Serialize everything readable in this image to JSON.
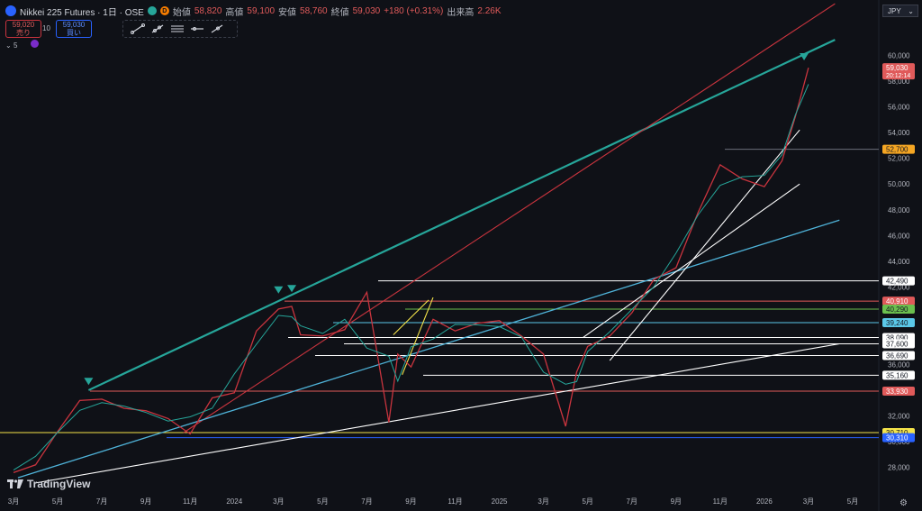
{
  "header": {
    "symbol_badge": "225",
    "title": "Nikkei 225 Futures · 1日 · OSE",
    "ohlc": [
      {
        "key": "始値",
        "value": "58,820"
      },
      {
        "key": "高値",
        "value": "59,100"
      },
      {
        "key": "安値",
        "value": "58,760"
      },
      {
        "key": "終値",
        "value": "59,030"
      }
    ],
    "change": "+180 (+0.31%)",
    "volume_label": "出来高",
    "volume_value": "2.26K",
    "colors": {
      "down": "#e05a5a",
      "up": "#26a69a",
      "bg": "#0f1117"
    }
  },
  "trade": {
    "sell_price": "59,020",
    "sell_label": "売り",
    "qty": "10",
    "buy_price": "59,030",
    "buy_label": "買い"
  },
  "indicators": {
    "count": "5"
  },
  "currency": "JPY",
  "brand": "TradingView",
  "chart_data": {
    "type": "line",
    "title": "Nikkei 225 Futures",
    "y_axis": {
      "ticks": [
        28000,
        30000,
        32000,
        34000,
        36000,
        38000,
        42000,
        44000,
        46000,
        48000,
        50000,
        52000,
        54000,
        56000,
        58000,
        60000
      ],
      "min": 27000,
      "max": 61000
    },
    "x_axis": {
      "ticks": [
        {
          "label": "3月",
          "i": 0
        },
        {
          "label": "5月",
          "i": 2
        },
        {
          "label": "7月",
          "i": 4
        },
        {
          "label": "9月",
          "i": 6
        },
        {
          "label": "11月",
          "i": 8
        },
        {
          "label": "2024",
          "i": 10
        },
        {
          "label": "3月",
          "i": 12
        },
        {
          "label": "5月",
          "i": 14
        },
        {
          "label": "7月",
          "i": 16
        },
        {
          "label": "9月",
          "i": 18
        },
        {
          "label": "11月",
          "i": 20
        },
        {
          "label": "2025",
          "i": 22
        },
        {
          "label": "3月",
          "i": 24
        },
        {
          "label": "5月",
          "i": 26
        },
        {
          "label": "7月",
          "i": 28
        },
        {
          "label": "9月",
          "i": 30
        },
        {
          "label": "11月",
          "i": 32
        },
        {
          "label": "2026",
          "i": 34
        },
        {
          "label": "3月",
          "i": 36
        },
        {
          "label": "5月",
          "i": 38
        }
      ]
    },
    "series": [
      {
        "values": [
          [
            0,
            27600
          ],
          [
            1,
            28200
          ],
          [
            2,
            30800
          ],
          [
            3,
            33200
          ],
          [
            4,
            33300
          ],
          [
            5,
            32600
          ],
          [
            6,
            32400
          ],
          [
            7,
            31800
          ],
          [
            8,
            30600
          ],
          [
            9,
            33400
          ],
          [
            10,
            33800
          ],
          [
            11,
            38600
          ],
          [
            12,
            40300
          ],
          [
            12.6,
            40500
          ],
          [
            13,
            38300
          ],
          [
            14,
            38200
          ],
          [
            15,
            38700
          ],
          [
            16,
            41600
          ],
          [
            17,
            31500
          ],
          [
            17.4,
            36800
          ],
          [
            18,
            35800
          ],
          [
            19,
            39500
          ],
          [
            20,
            38600
          ],
          [
            21,
            39200
          ],
          [
            22,
            39400
          ],
          [
            23,
            38200
          ],
          [
            24,
            36800
          ],
          [
            25,
            31200
          ],
          [
            25.5,
            35400
          ],
          [
            26,
            37400
          ],
          [
            27,
            38200
          ],
          [
            28,
            40000
          ],
          [
            29,
            42600
          ],
          [
            30,
            43500
          ],
          [
            31,
            47800
          ],
          [
            32,
            51500
          ],
          [
            33,
            50400
          ],
          [
            34,
            49800
          ],
          [
            34.8,
            51800
          ],
          [
            35.4,
            55200
          ],
          [
            36,
            59030
          ]
        ]
      }
    ],
    "price_labels": [
      {
        "value": "59,030",
        "sub": "20:12:14",
        "color": "#e05a5a",
        "price": 59030
      },
      {
        "value": "52,700",
        "color": "#f5a623",
        "price": 52700
      },
      {
        "value": "42,490",
        "color": "#ffffff",
        "price": 42490
      },
      {
        "value": "40,910",
        "color": "#e05a5a",
        "price": 40910
      },
      {
        "value": "40,290",
        "color": "#6bbf4e",
        "price": 40290
      },
      {
        "value": "39,240",
        "color": "#5bc8e8",
        "price": 39240
      },
      {
        "value": "38,090",
        "color": "#ffffff",
        "price": 38090
      },
      {
        "value": "37,600",
        "color": "#ffffff",
        "price": 37600
      },
      {
        "value": "36,690",
        "color": "#ffffff",
        "price": 36690
      },
      {
        "value": "35,160",
        "color": "#ffffff",
        "price": 35160
      },
      {
        "value": "33,930",
        "color": "#e05a5a",
        "price": 33930
      },
      {
        "value": "30,710",
        "color": "#f5e44a",
        "price": 30710
      },
      {
        "value": "30,310",
        "color": "#2962ff",
        "price": 30310
      }
    ],
    "grid": false,
    "legend": "none"
  }
}
